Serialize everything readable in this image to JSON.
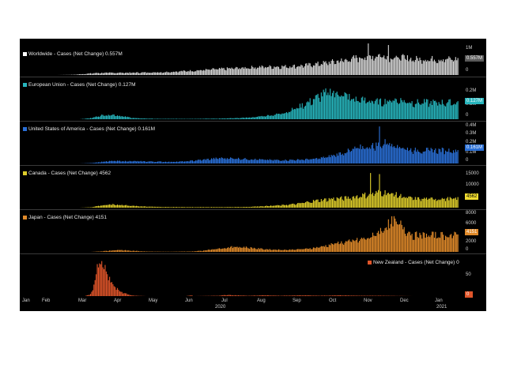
{
  "chart_data": [
    {
      "type": "bar",
      "title": "Worldwide - Cases (Net Change) 0.557M",
      "series": [
        {
          "name": "Worldwide - Cases (Net Change)",
          "color": "#d4d4d4"
        }
      ],
      "current_value": "0.557M",
      "y_ticks": [
        "1M",
        "0"
      ],
      "ylim": [
        0,
        1100000
      ],
      "points": [
        [
          0,
          0
        ],
        [
          10,
          0
        ],
        [
          20,
          0
        ],
        [
          30,
          0
        ],
        [
          45,
          10000
        ],
        [
          55,
          40000
        ],
        [
          65,
          70000
        ],
        [
          80,
          80000
        ],
        [
          95,
          80000
        ],
        [
          110,
          90000
        ],
        [
          125,
          100000
        ],
        [
          140,
          130000
        ],
        [
          155,
          160000
        ],
        [
          170,
          200000
        ],
        [
          185,
          230000
        ],
        [
          200,
          260000
        ],
        [
          210,
          280000
        ],
        [
          220,
          290000
        ],
        [
          235,
          300000
        ],
        [
          250,
          330000
        ],
        [
          265,
          400000
        ],
        [
          280,
          480000
        ],
        [
          290,
          540000
        ],
        [
          300,
          620000
        ],
        [
          310,
          650000
        ],
        [
          318,
          700000
        ],
        [
          325,
          650000
        ],
        [
          332,
          620000
        ],
        [
          340,
          600000
        ],
        [
          348,
          557000
        ]
      ],
      "spikes": [
        [
          308,
          1000000
        ],
        [
          326,
          950000
        ]
      ]
    },
    {
      "type": "bar",
      "title": "European Union - Cases (Net Change) 0.127M",
      "series": [
        {
          "name": "European Union - Cases (Net Change)",
          "color": "#27b5bd"
        }
      ],
      "current_value": "0.127M",
      "y_ticks": [
        "0.2M",
        "0.1M",
        "0"
      ],
      "ylim": [
        0,
        250000
      ],
      "points": [
        [
          0,
          0
        ],
        [
          50,
          0
        ],
        [
          60,
          8000
        ],
        [
          70,
          30000
        ],
        [
          80,
          35000
        ],
        [
          90,
          20000
        ],
        [
          100,
          8000
        ],
        [
          120,
          3000
        ],
        [
          150,
          3000
        ],
        [
          175,
          5000
        ],
        [
          190,
          8000
        ],
        [
          205,
          15000
        ],
        [
          215,
          25000
        ],
        [
          225,
          35000
        ],
        [
          235,
          55000
        ],
        [
          245,
          90000
        ],
        [
          255,
          130000
        ],
        [
          265,
          180000
        ],
        [
          275,
          210000
        ],
        [
          285,
          190000
        ],
        [
          295,
          150000
        ],
        [
          310,
          140000
        ],
        [
          320,
          130000
        ],
        [
          330,
          150000
        ],
        [
          340,
          140000
        ],
        [
          348,
          127000
        ]
      ],
      "spikes": []
    },
    {
      "type": "bar",
      "title": "United States of America - Cases (Net Change) 0.161M",
      "series": [
        {
          "name": "United States of America - Cases (Net Change)",
          "color": "#2a6fd6"
        }
      ],
      "current_value": "0.161M",
      "y_ticks": [
        "0.4M",
        "0.3M",
        "0.2M",
        "0.1M",
        "0"
      ],
      "ylim": [
        0,
        420000
      ],
      "points": [
        [
          0,
          0
        ],
        [
          50,
          0
        ],
        [
          60,
          5000
        ],
        [
          70,
          20000
        ],
        [
          80,
          30000
        ],
        [
          95,
          28000
        ],
        [
          110,
          25000
        ],
        [
          130,
          20000
        ],
        [
          145,
          25000
        ],
        [
          160,
          45000
        ],
        [
          175,
          65000
        ],
        [
          185,
          65000
        ],
        [
          200,
          55000
        ],
        [
          215,
          45000
        ],
        [
          230,
          40000
        ],
        [
          245,
          45000
        ],
        [
          260,
          55000
        ],
        [
          270,
          75000
        ],
        [
          280,
          110000
        ],
        [
          290,
          150000
        ],
        [
          300,
          190000
        ],
        [
          310,
          210000
        ],
        [
          318,
          230000
        ],
        [
          325,
          260000
        ],
        [
          330,
          240000
        ],
        [
          340,
          190000
        ],
        [
          348,
          161000
        ]
      ],
      "spikes": [
        [
          318,
          410000
        ]
      ]
    },
    {
      "type": "bar",
      "title": "Canada - Cases (Net Change) 4562",
      "series": [
        {
          "name": "Canada - Cases (Net Change)",
          "color": "#ddcc2a"
        }
      ],
      "current_value": "4562",
      "y_ticks": [
        "15000",
        "10000",
        "5000"
      ],
      "ylim": [
        0,
        17500
      ],
      "points": [
        [
          0,
          0
        ],
        [
          50,
          0
        ],
        [
          60,
          200
        ],
        [
          70,
          1200
        ],
        [
          80,
          1600
        ],
        [
          90,
          1300
        ],
        [
          100,
          800
        ],
        [
          120,
          400
        ],
        [
          140,
          300
        ],
        [
          160,
          300
        ],
        [
          180,
          300
        ],
        [
          200,
          400
        ],
        [
          215,
          800
        ],
        [
          230,
          1200
        ],
        [
          245,
          2000
        ],
        [
          260,
          3500
        ],
        [
          275,
          4500
        ],
        [
          290,
          5000
        ],
        [
          300,
          6000
        ],
        [
          310,
          7000
        ],
        [
          320,
          8000
        ],
        [
          330,
          7000
        ],
        [
          340,
          5500
        ],
        [
          348,
          4562
        ]
      ],
      "spikes": [
        [
          310,
          16000
        ],
        [
          318,
          15500
        ]
      ]
    },
    {
      "type": "bar",
      "title": "Japan - Cases (Net Change) 4151",
      "series": [
        {
          "name": "Japan - Cases (Net Change)",
          "color": "#e08a2a"
        }
      ],
      "current_value": "4151",
      "y_ticks": [
        "8000",
        "6000",
        "4000",
        "2000",
        "0"
      ],
      "ylim": [
        0,
        8500
      ],
      "points": [
        [
          0,
          0
        ],
        [
          60,
          0
        ],
        [
          70,
          150
        ],
        [
          85,
          500
        ],
        [
          95,
          300
        ],
        [
          110,
          100
        ],
        [
          130,
          50
        ],
        [
          150,
          100
        ],
        [
          160,
          300
        ],
        [
          170,
          700
        ],
        [
          180,
          1000
        ],
        [
          190,
          1300
        ],
        [
          200,
          1100
        ],
        [
          210,
          800
        ],
        [
          220,
          600
        ],
        [
          235,
          500
        ],
        [
          250,
          700
        ],
        [
          260,
          1000
        ],
        [
          270,
          1500
        ],
        [
          280,
          2200
        ],
        [
          290,
          2500
        ],
        [
          300,
          3000
        ],
        [
          310,
          3600
        ],
        [
          320,
          5500
        ],
        [
          330,
          7500
        ],
        [
          338,
          6500
        ],
        [
          344,
          5000
        ],
        [
          348,
          4151
        ]
      ],
      "spikes": []
    },
    {
      "type": "bar",
      "title": "New Zealand - Cases (Net Change) 0",
      "series": [
        {
          "name": "New Zealand - Cases (Net Change)",
          "color": "#e0552a"
        }
      ],
      "current_value": "0",
      "y_ticks": [
        "50"
      ],
      "ylim": [
        0,
        95
      ],
      "points": [
        [
          0,
          0
        ],
        [
          55,
          0
        ],
        [
          60,
          5
        ],
        [
          63,
          30
        ],
        [
          66,
          70
        ],
        [
          68,
          90
        ],
        [
          70,
          85
        ],
        [
          73,
          70
        ],
        [
          76,
          50
        ],
        [
          80,
          30
        ],
        [
          85,
          15
        ],
        [
          90,
          8
        ],
        [
          95,
          3
        ],
        [
          100,
          1
        ],
        [
          110,
          0
        ],
        [
          145,
          0
        ],
        [
          150,
          2
        ],
        [
          152,
          0
        ],
        [
          175,
          1
        ],
        [
          180,
          3
        ],
        [
          190,
          2
        ],
        [
          200,
          1
        ],
        [
          215,
          2
        ],
        [
          230,
          1
        ],
        [
          250,
          2
        ],
        [
          265,
          1
        ],
        [
          280,
          2
        ],
        [
          300,
          1
        ],
        [
          320,
          1
        ],
        [
          348,
          0
        ]
      ],
      "spikes": []
    }
  ],
  "x_axis": {
    "months": [
      "Jan",
      "Feb",
      "Mar",
      "Apr",
      "May",
      "Jun",
      "Jul",
      "Aug",
      "Sep",
      "Oct",
      "Nov",
      "Dec",
      "Jan"
    ],
    "years": [
      "2020",
      "2021"
    ]
  }
}
